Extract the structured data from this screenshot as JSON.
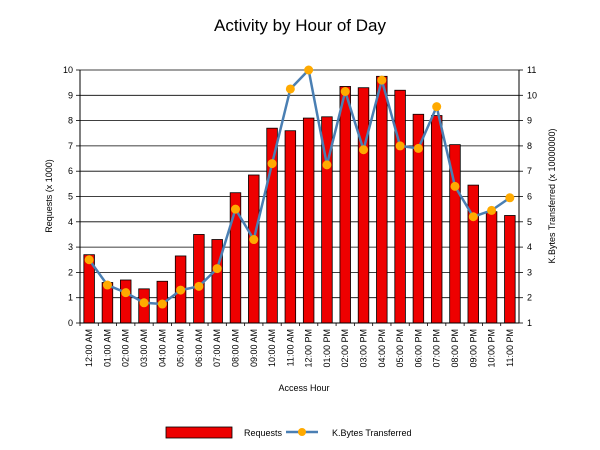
{
  "chart_data": {
    "type": "bar",
    "title": "Activity by Hour of Day",
    "xlabel": "Access Hour",
    "ylabel_left": "Requests (x 1000)",
    "ylabel_right": "K.Bytes Transferred (x 10000000)",
    "ylim_left": [
      0,
      10
    ],
    "ylim_right": [
      1,
      11
    ],
    "grid": "horizontal",
    "legend_position": "bottom",
    "categories": [
      "12:00 AM",
      "01:00 AM",
      "02:00 AM",
      "03:00 AM",
      "04:00 AM",
      "05:00 AM",
      "06:00 AM",
      "07:00 AM",
      "08:00 AM",
      "09:00 AM",
      "10:00 AM",
      "11:00 AM",
      "12:00 PM",
      "01:00 PM",
      "02:00 PM",
      "03:00 PM",
      "04:00 PM",
      "05:00 PM",
      "06:00 PM",
      "07:00 PM",
      "08:00 PM",
      "09:00 PM",
      "10:00 PM",
      "11:00 PM"
    ],
    "series": [
      {
        "name": "Requests",
        "type": "bar",
        "axis": "left",
        "color": "#ee0000",
        "values": [
          2.7,
          1.6,
          1.7,
          1.35,
          1.65,
          2.65,
          3.5,
          3.3,
          5.15,
          5.85,
          7.7,
          7.6,
          8.1,
          8.15,
          9.35,
          9.3,
          9.75,
          9.2,
          8.25,
          8.2,
          7.05,
          5.45,
          4.4,
          4.25
        ]
      },
      {
        "name": "K.Bytes Transferred",
        "type": "line",
        "axis": "right",
        "color": "#4a7fb3",
        "marker_color": "#ffaa00",
        "values": [
          3.5,
          2.5,
          2.2,
          1.8,
          1.75,
          2.3,
          2.45,
          3.15,
          5.5,
          4.3,
          7.3,
          10.25,
          11.0,
          7.25,
          10.15,
          7.85,
          10.6,
          8.0,
          7.9,
          9.55,
          6.4,
          5.2,
          5.45,
          5.95
        ]
      }
    ],
    "left_ticks": [
      "0",
      "1",
      "2",
      "3",
      "4",
      "5",
      "6",
      "7",
      "8",
      "9",
      "10"
    ],
    "right_ticks": [
      "1",
      "2",
      "3",
      "4",
      "5",
      "6",
      "7",
      "8",
      "9",
      "10",
      "11"
    ]
  }
}
